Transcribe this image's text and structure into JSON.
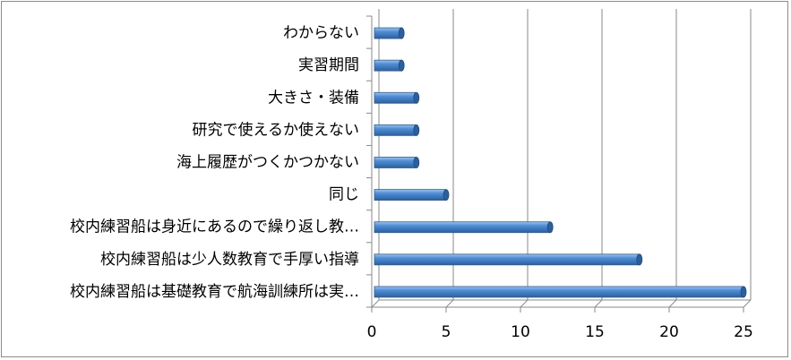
{
  "chart_data": {
    "type": "bar",
    "orientation": "horizontal",
    "style": "3d-cylinder",
    "bar_color": "#4f8fd6",
    "bar_color_dark": "#2c5f9e",
    "bar_color_light": "#9cc6f2",
    "grid": true,
    "legend": "none",
    "title": "",
    "xlabel": "",
    "ylabel": "",
    "xlim": [
      0,
      25
    ],
    "x_ticks": [
      "0",
      "5",
      "10",
      "15",
      "20",
      "25"
    ],
    "categories": [
      "わからない",
      "実習期間",
      "大きさ・装備",
      "研究で使えるか使えない",
      "海上履歴がつくかつかない",
      "同じ",
      "校内練習船は身近にあるので繰り返し教…",
      "校内練習船は少人数教育で手厚い指導",
      "校内練習船は基礎教育で航海訓練所は実…"
    ],
    "values": [
      2,
      2,
      3,
      3,
      3,
      5,
      12,
      18,
      25
    ]
  }
}
